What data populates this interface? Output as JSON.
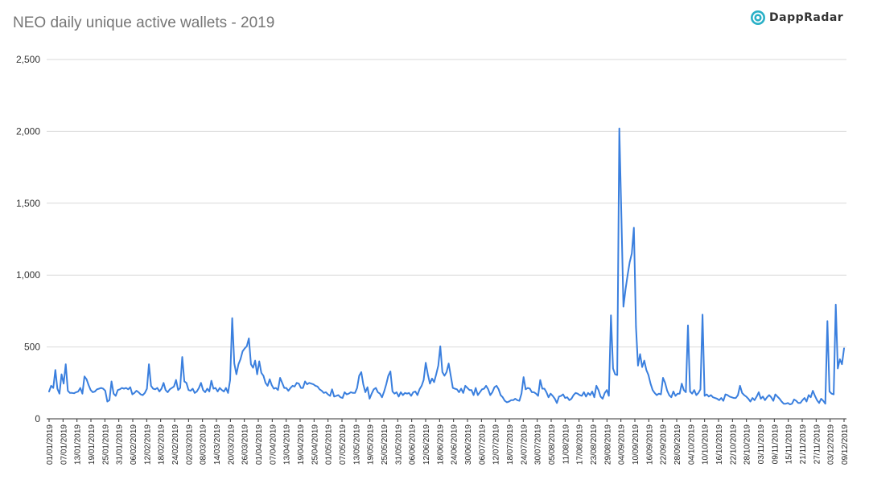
{
  "title": "NEO daily unique active wallets - 2019",
  "logo": {
    "text": "DappRadar",
    "icon": "dappradar-logo-icon",
    "color": "#2ab0c7"
  },
  "chart_data": {
    "type": "line",
    "title": "NEO daily unique active wallets - 2019",
    "xlabel": "",
    "ylabel": "",
    "ylim": [
      0,
      2500
    ],
    "yticks": [
      "0",
      "500",
      "1,000",
      "1,500",
      "2,000",
      "2,500"
    ],
    "grid": true,
    "line_color": "#3a7fde",
    "start_date": "01/01/2019",
    "end_date": "09/12/2019",
    "xtick_labels": [
      "01/01/2019",
      "07/01/2019",
      "13/01/2019",
      "19/01/2019",
      "25/01/2019",
      "31/01/2019",
      "06/02/2019",
      "12/02/2019",
      "18/02/2019",
      "24/02/2019",
      "02/03/2019",
      "08/03/2019",
      "14/03/2019",
      "20/03/2019",
      "26/03/2019",
      "01/04/2019",
      "07/04/2019",
      "13/04/2019",
      "19/04/2019",
      "25/04/2019",
      "01/05/2019",
      "07/05/2019",
      "13/05/2019",
      "19/05/2019",
      "25/05/2019",
      "31/05/2019",
      "06/06/2019",
      "12/06/2019",
      "18/06/2019",
      "24/06/2019",
      "30/06/2019",
      "06/07/2019",
      "12/07/2019",
      "18/07/2019",
      "24/07/2019",
      "30/07/2019",
      "05/08/2019",
      "11/08/2019",
      "17/08/2019",
      "23/08/2019",
      "29/08/2019",
      "04/09/2019",
      "10/09/2019",
      "16/09/2019",
      "22/09/2019",
      "28/09/2019",
      "04/10/2019",
      "10/10/2019",
      "16/10/2019",
      "22/10/2019",
      "28/10/2019",
      "03/11/2019",
      "09/11/2019",
      "15/11/2019",
      "21/11/2019",
      "27/11/2019",
      "03/12/2019",
      "09/12/2019"
    ],
    "series": [
      {
        "values": [
          190,
          230,
          215,
          340,
          210,
          175,
          310,
          245,
          380,
          195,
          180,
          180,
          178,
          185,
          190,
          215,
          175,
          295,
          275,
          235,
          200,
          185,
          190,
          205,
          210,
          215,
          210,
          195,
          120,
          130,
          260,
          175,
          160,
          200,
          205,
          215,
          210,
          215,
          205,
          220,
          170,
          180,
          195,
          185,
          170,
          165,
          180,
          210,
          380,
          230,
          210,
          205,
          215,
          190,
          210,
          250,
          200,
          185,
          205,
          215,
          225,
          270,
          200,
          215,
          430,
          260,
          250,
          200,
          195,
          210,
          180,
          190,
          215,
          250,
          200,
          185,
          210,
          190,
          265,
          210,
          215,
          190,
          215,
          200,
          190,
          215,
          180,
          270,
          700,
          385,
          310,
          380,
          415,
          470,
          490,
          505,
          560,
          380,
          355,
          405,
          310,
          400,
          320,
          300,
          250,
          230,
          275,
          235,
          210,
          215,
          200,
          285,
          250,
          215,
          215,
          195,
          215,
          230,
          225,
          250,
          245,
          215,
          215,
          260,
          240,
          250,
          245,
          240,
          230,
          225,
          205,
          195,
          180,
          185,
          170,
          160,
          205,
          155,
          160,
          165,
          150,
          145,
          185,
          170,
          175,
          185,
          180,
          180,
          215,
          300,
          325,
          240,
          185,
          220,
          140,
          175,
          205,
          215,
          185,
          175,
          150,
          190,
          240,
          300,
          330,
          190,
          175,
          185,
          155,
          185,
          165,
          180,
          175,
          180,
          160,
          185,
          190,
          165,
          205,
          230,
          270,
          390,
          310,
          245,
          280,
          255,
          310,
          370,
          505,
          325,
          300,
          325,
          385,
          300,
          215,
          210,
          205,
          185,
          210,
          180,
          230,
          215,
          200,
          200,
          165,
          215,
          165,
          185,
          205,
          210,
          230,
          205,
          165,
          185,
          220,
          230,
          205,
          165,
          150,
          125,
          115,
          120,
          130,
          130,
          140,
          130,
          125,
          175,
          290,
          205,
          215,
          210,
          185,
          185,
          175,
          160,
          270,
          210,
          210,
          185,
          150,
          175,
          160,
          140,
          110,
          155,
          160,
          170,
          145,
          150,
          130,
          140,
          165,
          180,
          175,
          165,
          160,
          185,
          155,
          180,
          165,
          190,
          150,
          230,
          200,
          155,
          140,
          180,
          200,
          160,
          720,
          350,
          310,
          305,
          2020,
          1400,
          780,
          900,
          1000,
          1090,
          1150,
          1330,
          640,
          370,
          450,
          360,
          405,
          340,
          305,
          245,
          200,
          180,
          165,
          175,
          170,
          285,
          250,
          195,
          165,
          150,
          190,
          160,
          175,
          175,
          245,
          200,
          185,
          650,
          190,
          175,
          200,
          165,
          180,
          205,
          725,
          160,
          170,
          155,
          165,
          150,
          145,
          140,
          130,
          145,
          125,
          170,
          165,
          155,
          150,
          145,
          145,
          165,
          230,
          180,
          165,
          155,
          140,
          120,
          145,
          130,
          155,
          185,
          140,
          155,
          130,
          150,
          165,
          150,
          125,
          170,
          155,
          140,
          120,
          105,
          105,
          110,
          100,
          105,
          135,
          125,
          110,
          110,
          130,
          145,
          120,
          165,
          150,
          195,
          160,
          130,
          110,
          140,
          125,
          105,
          680,
          190,
          175,
          170,
          795,
          350,
          415,
          380,
          490
        ]
      }
    ]
  }
}
